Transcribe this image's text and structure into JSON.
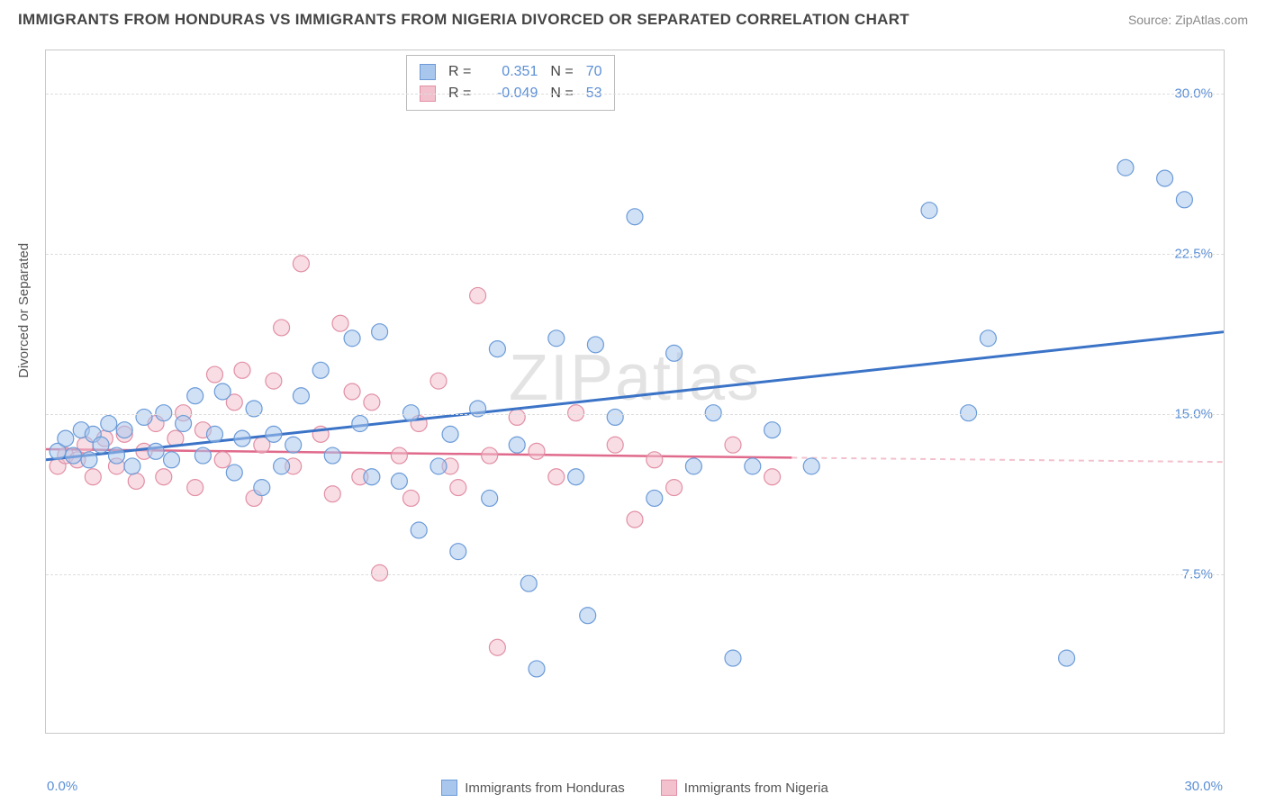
{
  "title": "IMMIGRANTS FROM HONDURAS VS IMMIGRANTS FROM NIGERIA DIVORCED OR SEPARATED CORRELATION CHART",
  "source_label": "Source: ZipAtlas.com",
  "ylabel": "Divorced or Separated",
  "watermark": "ZIPatlas",
  "chart": {
    "type": "scatter",
    "xlim": [
      0,
      30
    ],
    "ylim": [
      0,
      32
    ],
    "xtick_min_label": "0.0%",
    "xtick_max_label": "30.0%",
    "yticks": [
      7.5,
      15.0,
      22.5,
      30.0
    ],
    "ytick_labels": [
      "7.5%",
      "15.0%",
      "22.5%",
      "30.0%"
    ],
    "xticks_minor": [
      3.33,
      6.67,
      10,
      13.33,
      16.67,
      20,
      23.33,
      26.67
    ],
    "background_color": "#ffffff",
    "grid_color": "#dddddd",
    "marker_radius": 9,
    "marker_opacity": 0.55,
    "series": [
      {
        "name": "Immigrants from Honduras",
        "color_fill": "#a9c6ec",
        "color_stroke": "#6b9bd8",
        "r_label": "R =",
        "r_value": "0.351",
        "n_label": "N =",
        "n_value": "70",
        "trend": {
          "x1": 0,
          "y1": 12.8,
          "x2": 30,
          "y2": 18.8,
          "color": "#3b73c7",
          "width": 3
        },
        "points": [
          [
            0.3,
            13.2
          ],
          [
            0.5,
            13.8
          ],
          [
            0.7,
            13.0
          ],
          [
            0.9,
            14.2
          ],
          [
            1.1,
            12.8
          ],
          [
            1.2,
            14.0
          ],
          [
            1.4,
            13.5
          ],
          [
            1.6,
            14.5
          ],
          [
            1.8,
            13.0
          ],
          [
            2.0,
            14.2
          ],
          [
            2.2,
            12.5
          ],
          [
            2.5,
            14.8
          ],
          [
            2.8,
            13.2
          ],
          [
            3.0,
            15.0
          ],
          [
            3.2,
            12.8
          ],
          [
            3.5,
            14.5
          ],
          [
            3.8,
            15.8
          ],
          [
            4.0,
            13.0
          ],
          [
            4.3,
            14.0
          ],
          [
            4.5,
            16.0
          ],
          [
            4.8,
            12.2
          ],
          [
            5.0,
            13.8
          ],
          [
            5.3,
            15.2
          ],
          [
            5.5,
            11.5
          ],
          [
            5.8,
            14.0
          ],
          [
            6.0,
            12.5
          ],
          [
            6.3,
            13.5
          ],
          [
            6.5,
            15.8
          ],
          [
            7.0,
            17.0
          ],
          [
            7.3,
            13.0
          ],
          [
            7.8,
            18.5
          ],
          [
            8.0,
            14.5
          ],
          [
            8.3,
            12.0
          ],
          [
            8.5,
            18.8
          ],
          [
            9.0,
            11.8
          ],
          [
            9.3,
            15.0
          ],
          [
            9.5,
            9.5
          ],
          [
            10.0,
            12.5
          ],
          [
            10.3,
            14.0
          ],
          [
            10.5,
            8.5
          ],
          [
            11.0,
            15.2
          ],
          [
            11.3,
            11.0
          ],
          [
            11.5,
            18.0
          ],
          [
            12.0,
            13.5
          ],
          [
            12.3,
            7.0
          ],
          [
            12.5,
            3.0
          ],
          [
            13.0,
            18.5
          ],
          [
            13.5,
            12.0
          ],
          [
            13.8,
            5.5
          ],
          [
            14.0,
            18.2
          ],
          [
            14.5,
            14.8
          ],
          [
            15.0,
            24.2
          ],
          [
            15.5,
            11.0
          ],
          [
            16.0,
            17.8
          ],
          [
            16.5,
            12.5
          ],
          [
            17.0,
            15.0
          ],
          [
            17.5,
            3.5
          ],
          [
            18.0,
            12.5
          ],
          [
            18.5,
            14.2
          ],
          [
            19.5,
            12.5
          ],
          [
            22.5,
            24.5
          ],
          [
            23.5,
            15.0
          ],
          [
            24.0,
            18.5
          ],
          [
            26.0,
            3.5
          ],
          [
            27.5,
            26.5
          ],
          [
            28.5,
            26.0
          ],
          [
            29.0,
            25.0
          ]
        ]
      },
      {
        "name": "Immigrants from Nigeria",
        "color_fill": "#f2c1cd",
        "color_stroke": "#e28fa5",
        "r_label": "R =",
        "r_value": "-0.049",
        "n_label": "N =",
        "n_value": "53",
        "trend": {
          "x1": 0,
          "y1": 13.3,
          "x2": 19,
          "y2": 12.9,
          "color": "#e06a8c",
          "width": 2.5
        },
        "trend_ext": {
          "x1": 19,
          "y1": 12.9,
          "x2": 30,
          "y2": 12.7,
          "color": "#f2c1cd",
          "dash": "6 5"
        },
        "points": [
          [
            0.3,
            12.5
          ],
          [
            0.5,
            13.0
          ],
          [
            0.8,
            12.8
          ],
          [
            1.0,
            13.5
          ],
          [
            1.2,
            12.0
          ],
          [
            1.5,
            13.8
          ],
          [
            1.8,
            12.5
          ],
          [
            2.0,
            14.0
          ],
          [
            2.3,
            11.8
          ],
          [
            2.5,
            13.2
          ],
          [
            2.8,
            14.5
          ],
          [
            3.0,
            12.0
          ],
          [
            3.3,
            13.8
          ],
          [
            3.5,
            15.0
          ],
          [
            3.8,
            11.5
          ],
          [
            4.0,
            14.2
          ],
          [
            4.3,
            16.8
          ],
          [
            4.5,
            12.8
          ],
          [
            4.8,
            15.5
          ],
          [
            5.0,
            17.0
          ],
          [
            5.3,
            11.0
          ],
          [
            5.5,
            13.5
          ],
          [
            5.8,
            16.5
          ],
          [
            6.0,
            19.0
          ],
          [
            6.3,
            12.5
          ],
          [
            6.5,
            22.0
          ],
          [
            7.0,
            14.0
          ],
          [
            7.3,
            11.2
          ],
          [
            7.5,
            19.2
          ],
          [
            7.8,
            16.0
          ],
          [
            8.0,
            12.0
          ],
          [
            8.3,
            15.5
          ],
          [
            8.5,
            7.5
          ],
          [
            9.0,
            13.0
          ],
          [
            9.3,
            11.0
          ],
          [
            9.5,
            14.5
          ],
          [
            10.0,
            16.5
          ],
          [
            10.3,
            12.5
          ],
          [
            10.5,
            11.5
          ],
          [
            11.0,
            20.5
          ],
          [
            11.3,
            13.0
          ],
          [
            11.5,
            4.0
          ],
          [
            12.0,
            14.8
          ],
          [
            12.5,
            13.2
          ],
          [
            13.0,
            12.0
          ],
          [
            13.5,
            15.0
          ],
          [
            14.5,
            13.5
          ],
          [
            15.0,
            10.0
          ],
          [
            15.5,
            12.8
          ],
          [
            16.0,
            11.5
          ],
          [
            17.5,
            13.5
          ],
          [
            18.5,
            12.0
          ]
        ]
      }
    ]
  },
  "legend_footer": [
    {
      "label": "Immigrants from Honduras",
      "fill": "#a9c6ec",
      "stroke": "#6b9bd8"
    },
    {
      "label": "Immigrants from Nigeria",
      "fill": "#f2c1cd",
      "stroke": "#e28fa5"
    }
  ]
}
